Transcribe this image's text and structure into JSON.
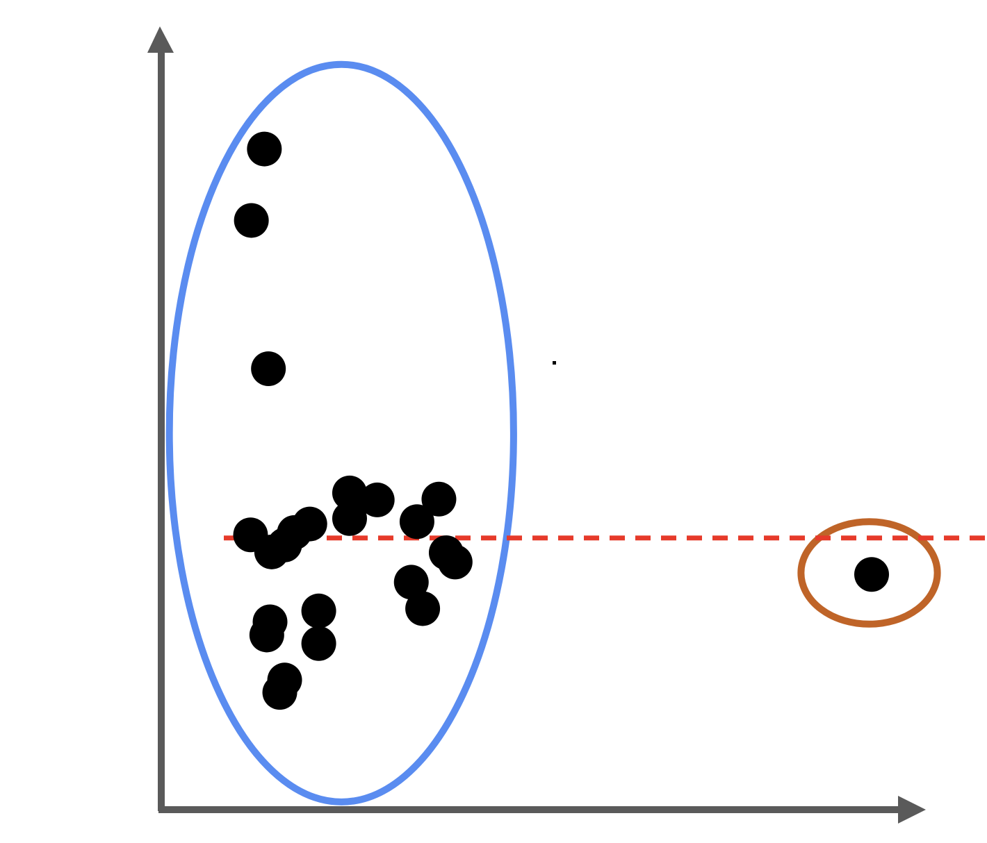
{
  "chart_data": {
    "type": "scatter",
    "title": "",
    "xlabel": "",
    "ylabel": "",
    "xlim": [
      0,
      100
    ],
    "ylim": [
      0,
      100
    ],
    "grid": false,
    "legend": "none",
    "points": [
      {
        "x": 12.7,
        "y": 85.1,
        "group": "cluster"
      },
      {
        "x": 11.1,
        "y": 75.9,
        "group": "cluster"
      },
      {
        "x": 13.2,
        "y": 56.8,
        "group": "cluster"
      },
      {
        "x": 23.2,
        "y": 40.8,
        "group": "cluster"
      },
      {
        "x": 26.6,
        "y": 39.9,
        "group": "cluster"
      },
      {
        "x": 34.2,
        "y": 40.0,
        "group": "cluster"
      },
      {
        "x": 23.2,
        "y": 37.5,
        "group": "cluster"
      },
      {
        "x": 31.5,
        "y": 37.1,
        "group": "cluster"
      },
      {
        "x": 18.3,
        "y": 36.8,
        "group": "cluster"
      },
      {
        "x": 16.4,
        "y": 35.7,
        "group": "cluster"
      },
      {
        "x": 11.0,
        "y": 35.4,
        "group": "cluster"
      },
      {
        "x": 15.2,
        "y": 34.1,
        "group": "cluster"
      },
      {
        "x": 13.6,
        "y": 33.2,
        "group": "cluster"
      },
      {
        "x": 35.1,
        "y": 33.1,
        "group": "cluster"
      },
      {
        "x": 36.2,
        "y": 31.9,
        "group": "cluster"
      },
      {
        "x": 30.8,
        "y": 29.3,
        "group": "cluster"
      },
      {
        "x": 32.2,
        "y": 25.9,
        "group": "cluster"
      },
      {
        "x": 19.4,
        "y": 25.6,
        "group": "cluster"
      },
      {
        "x": 13.4,
        "y": 24.2,
        "group": "cluster"
      },
      {
        "x": 13.0,
        "y": 22.5,
        "group": "cluster"
      },
      {
        "x": 19.4,
        "y": 21.4,
        "group": "cluster"
      },
      {
        "x": 15.2,
        "y": 16.7,
        "group": "cluster"
      },
      {
        "x": 14.6,
        "y": 15.1,
        "group": "cluster"
      },
      {
        "x": 87.5,
        "y": 30.3,
        "group": "outlier"
      }
    ],
    "threshold_line": {
      "y": 35.0,
      "style": "dashed"
    },
    "annotations": [
      {
        "kind": "ellipse",
        "target": "cluster",
        "cx": 22.2,
        "cy": 48.5,
        "rx": 21.2,
        "ry": 47.5
      },
      {
        "kind": "ellipse",
        "target": "outlier",
        "cx": 87.2,
        "cy": 30.5,
        "rx": 8.4,
        "ry": 6.6
      }
    ]
  },
  "colors": {
    "axis": "#5a5a5a",
    "point": "#000000",
    "cluster_ellipse": "#5a8cf0",
    "outlier_ellipse": "#bf6428",
    "threshold": "#e63a2a",
    "background": "#ffffff"
  }
}
